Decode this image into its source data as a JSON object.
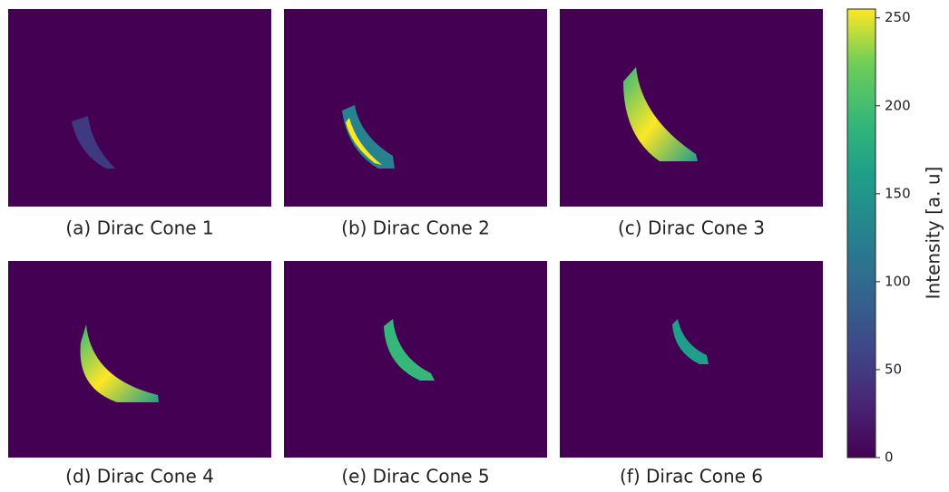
{
  "panels": [
    {
      "caption": "(a) Dirac Cone 1"
    },
    {
      "caption": "(b) Dirac Cone 2"
    },
    {
      "caption": "(c) Dirac Cone 3"
    },
    {
      "caption": "(d) Dirac Cone 4"
    },
    {
      "caption": "(e) Dirac Cone 5"
    },
    {
      "caption": "(f) Dirac Cone 6"
    }
  ],
  "colorbar": {
    "label": "Intensity [a. u]",
    "ylim": [
      0,
      255
    ],
    "yticks": [
      0,
      50,
      100,
      150,
      200,
      250
    ]
  }
}
